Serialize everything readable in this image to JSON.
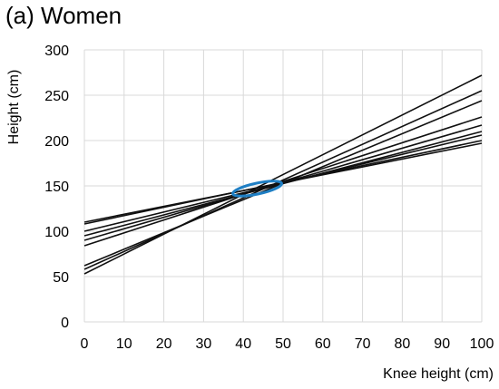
{
  "chart_data": {
    "type": "line",
    "title": "(a) Women",
    "xlabel": "Knee height (cm)",
    "ylabel": "Height (cm)",
    "xlim": [
      0,
      100
    ],
    "ylim": [
      0,
      300
    ],
    "xticks": [
      0,
      10,
      20,
      30,
      40,
      50,
      60,
      70,
      80,
      90,
      100
    ],
    "yticks": [
      0,
      50,
      100,
      150,
      200,
      250,
      300
    ],
    "grid": true,
    "series": [
      {
        "x": [
          0,
          100
        ],
        "y": [
          110,
          197
        ]
      },
      {
        "x": [
          0,
          100
        ],
        "y": [
          108,
          200
        ]
      },
      {
        "x": [
          0,
          100
        ],
        "y": [
          100,
          206
        ]
      },
      {
        "x": [
          0,
          100
        ],
        "y": [
          95,
          210
        ]
      },
      {
        "x": [
          0,
          100
        ],
        "y": [
          90,
          217
        ]
      },
      {
        "x": [
          0,
          100
        ],
        "y": [
          84,
          226
        ]
      },
      {
        "x": [
          0,
          100
        ],
        "y": [
          62,
          244
        ]
      },
      {
        "x": [
          0,
          100
        ],
        "y": [
          58,
          255
        ]
      },
      {
        "x": [
          0,
          100
        ],
        "y": [
          53,
          272
        ]
      }
    ],
    "annotations": [
      {
        "type": "ellipse",
        "cx": 43.5,
        "cy": 147,
        "rx": 4,
        "ry": 12,
        "color": "#1f7fc4"
      }
    ],
    "colors": {
      "lines": "#111111",
      "grid": "#d9d9d9",
      "annotation": "#1f7fc4"
    }
  }
}
